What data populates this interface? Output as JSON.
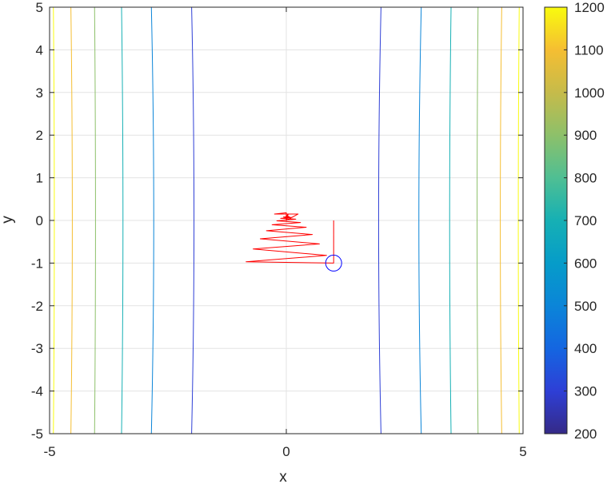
{
  "chart_data": {
    "type": "contour",
    "title": "",
    "xlabel": "x",
    "ylabel": "y",
    "xlim": [
      -5,
      5
    ],
    "ylim": [
      -5,
      5
    ],
    "xticks": [
      -5,
      0,
      5
    ],
    "yticks": [
      -5,
      -4,
      -3,
      -2,
      -1,
      0,
      1,
      2,
      3,
      4,
      5
    ],
    "grid": true,
    "colormap": "parula",
    "colorbar": {
      "min": 200,
      "max": 1200,
      "ticks": [
        200,
        300,
        400,
        500,
        600,
        700,
        800,
        900,
        1000,
        1100,
        1200
      ]
    },
    "contours": [
      {
        "level": 300,
        "x_at_y0": 1.95,
        "x_at_y5": 2.0
      },
      {
        "level": 500,
        "x_at_y0": 2.8,
        "x_at_y5": 2.85
      },
      {
        "level": 700,
        "x_at_y0": 3.45,
        "x_at_y5": 3.48
      },
      {
        "level": 900,
        "x_at_y0": 4.03,
        "x_at_y5": 4.05
      },
      {
        "level": 1100,
        "x_at_y0": 4.52,
        "x_at_y5": 4.55
      },
      {
        "level": 1200,
        "x_at_y0": 4.9,
        "x_at_y5": 4.92
      }
    ],
    "start_point": {
      "x": 1,
      "y": -1
    },
    "path_series": {
      "name": "",
      "color": "#ff0000",
      "x": [
        1,
        1,
        1,
        -0.85,
        0.85,
        -0.7,
        0.7,
        -0.55,
        0.55,
        -0.42,
        0.42,
        -0.3,
        0.3,
        -0.2,
        0.2,
        -0.12,
        0.12,
        -0.06,
        0.06,
        0.0,
        0.0,
        -0.04,
        0.04,
        0.0,
        0.0,
        -0.25,
        0.25,
        0.0,
        0.0
      ],
      "y": [
        0,
        -1,
        -1,
        -0.97,
        -0.82,
        -0.67,
        -0.55,
        -0.43,
        -0.33,
        -0.24,
        -0.16,
        -0.1,
        -0.05,
        -0.01,
        0.03,
        0.05,
        0.07,
        0.08,
        0.09,
        0.1,
        0.1,
        0.05,
        0.15,
        0.0,
        0.18,
        0.15,
        0.15,
        0.0,
        0.12
      ]
    }
  }
}
